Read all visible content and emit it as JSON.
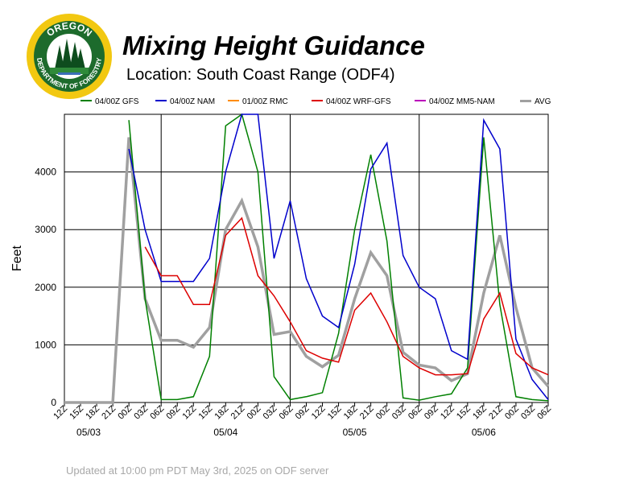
{
  "header": {
    "title": "Mixing Height Guidance",
    "location": "Location:  South Coast Range (ODF4)"
  },
  "logo": {
    "text_top": "OREGON",
    "text_bottom": "DEPARTMENT OF FORESTRY",
    "colors": {
      "ring": "#f2c811",
      "inner": "#1d6b2c",
      "trees": "#0e4d1e",
      "sky": "#ffffff"
    }
  },
  "footer": {
    "text": "Updated at 10:00 pm PDT May 3rd, 2025 on ODF server"
  },
  "chart_data": {
    "type": "line",
    "title": "",
    "xlabel": "",
    "ylabel": "Feet",
    "ylim": [
      0,
      5000
    ],
    "yticks": [
      0,
      1000,
      2000,
      3000,
      4000
    ],
    "grid": true,
    "legend_position": "top",
    "x_labels": [
      "12Z",
      "15Z",
      "18Z",
      "21Z",
      "00Z",
      "03Z",
      "06Z",
      "09Z",
      "12Z",
      "15Z",
      "18Z",
      "21Z",
      "00Z",
      "03Z",
      "06Z",
      "09Z",
      "12Z",
      "15Z",
      "18Z",
      "21Z",
      "00Z",
      "03Z",
      "06Z",
      "09Z",
      "12Z",
      "15Z",
      "18Z",
      "21Z",
      "00Z",
      "03Z",
      "06Z"
    ],
    "date_labels": [
      {
        "index": 1.5,
        "text": "05/03"
      },
      {
        "index": 10,
        "text": "05/04"
      },
      {
        "index": 18,
        "text": "05/05"
      },
      {
        "index": 26,
        "text": "05/06"
      }
    ],
    "day_dividers": [
      6,
      14,
      22
    ],
    "series": [
      {
        "name": "04/00Z  GFS",
        "color": "#008000",
        "width": 1.5,
        "x": [
          4,
          5,
          6,
          7,
          8,
          9,
          10,
          11,
          12,
          13,
          14,
          15,
          16,
          17,
          18,
          19,
          20,
          21,
          22,
          23,
          24,
          25,
          26,
          27,
          28,
          29,
          30
        ],
        "values": [
          4900,
          1800,
          50,
          50,
          100,
          800,
          4800,
          5000,
          4000,
          450,
          50,
          100,
          170,
          1200,
          3000,
          4300,
          2800,
          80,
          40,
          100,
          150,
          600,
          4600,
          1700,
          100,
          50,
          30
        ]
      },
      {
        "name": "04/00Z  NAM",
        "color": "#0000cc",
        "width": 1.5,
        "x": [
          4,
          5,
          6,
          7,
          8,
          9,
          10,
          11,
          12,
          13,
          14,
          15,
          16,
          17,
          18,
          19,
          20,
          21,
          22,
          23,
          24,
          25,
          26,
          27,
          28,
          29,
          30
        ],
        "values": [
          4400,
          3000,
          2100,
          2100,
          2100,
          2500,
          4000,
          5000,
          5000,
          2500,
          3500,
          2150,
          1500,
          1300,
          2400,
          4050,
          4500,
          2550,
          2000,
          1800,
          900,
          750,
          4900,
          4400,
          1100,
          400,
          50
        ]
      },
      {
        "name": "01/00Z  RMC",
        "color": "#ff8c00",
        "width": 1.5,
        "x": [],
        "values": []
      },
      {
        "name": "04/00Z  WRF-GFS",
        "color": "#dd0000",
        "width": 1.5,
        "x": [
          5,
          6,
          7,
          8,
          9,
          10,
          11,
          12,
          13,
          14,
          15,
          16,
          17,
          18,
          19,
          20,
          21,
          22,
          23,
          24,
          25,
          26,
          27,
          28,
          29,
          30
        ],
        "values": [
          2700,
          2200,
          2200,
          1700,
          1700,
          2900,
          3200,
          2200,
          1850,
          1400,
          900,
          770,
          700,
          1600,
          1900,
          1400,
          800,
          600,
          480,
          480,
          500,
          1450,
          1900,
          850,
          600,
          480
        ]
      },
      {
        "name": "04/00Z  MM5-NAM",
        "color": "#bb00bb",
        "width": 1.5,
        "x": [],
        "values": []
      },
      {
        "name": "AVG",
        "color": "#a0a0a0",
        "width": 3.5,
        "x": [
          0,
          1,
          2,
          3,
          4,
          5,
          6,
          7,
          8,
          9,
          10,
          11,
          12,
          13,
          14,
          15,
          16,
          17,
          18,
          19,
          20,
          21,
          22,
          23,
          24,
          25,
          26,
          27,
          28,
          29,
          30
        ],
        "values": [
          0,
          0,
          0,
          0,
          4600,
          1800,
          1080,
          1080,
          960,
          1300,
          3000,
          3500,
          2700,
          1180,
          1230,
          800,
          620,
          820,
          1800,
          2600,
          2200,
          870,
          650,
          600,
          380,
          500,
          1900,
          2900,
          1650,
          600,
          280
        ]
      }
    ]
  }
}
